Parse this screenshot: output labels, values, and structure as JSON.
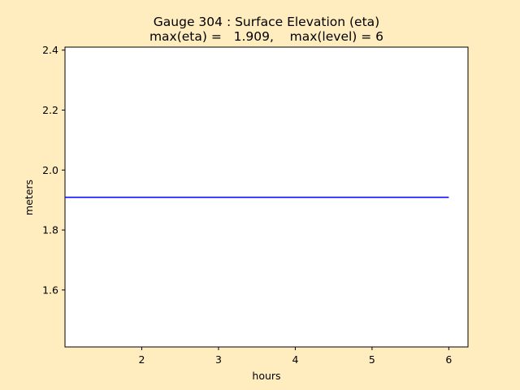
{
  "chart_data": {
    "type": "line",
    "title": "Gauge 304 : Surface Elevation (eta)",
    "subtitle": "max(eta) =   1.909,    max(level) = 6",
    "xlabel": "hours",
    "ylabel": "meters",
    "xlim": [
      1.0,
      6.25
    ],
    "ylim": [
      1.41,
      2.41
    ],
    "xticks": [
      2,
      3,
      4,
      5,
      6
    ],
    "yticks": [
      1.6,
      1.8,
      2.0,
      2.2,
      2.4
    ],
    "ytick_labels": [
      "1.6",
      "1.8",
      "2.0",
      "2.2",
      "2.4"
    ],
    "grid": false,
    "series": [
      {
        "color": "#0000ff",
        "x": [
          1.0,
          2.0,
          3.0,
          4.0,
          5.0,
          6.0
        ],
        "y": [
          1.909,
          1.909,
          1.909,
          1.909,
          1.909,
          1.909
        ]
      }
    ]
  }
}
